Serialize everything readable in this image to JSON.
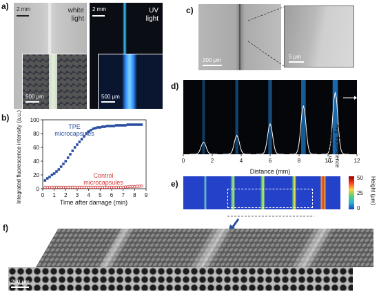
{
  "panels": {
    "a": {
      "label": "a)",
      "left": {
        "scale": "2 mm",
        "caption_line1": "white",
        "caption_line2": "light",
        "inset_scale": "500 μm"
      },
      "right": {
        "scale": "2 mm",
        "caption_line1": "UV",
        "caption_line2": "light",
        "inset_scale": "500 μm"
      }
    },
    "b": {
      "label": "b)"
    },
    "c": {
      "label": "c)",
      "scale": "200 μm",
      "inset_scale": "5 μm"
    },
    "d": {
      "label": "d)",
      "ylabel_line1": "Avg. fluorescence",
      "ylabel_line2": "intensity (a.u.)"
    },
    "e": {
      "label": "e)",
      "colorbar_title": "Height (μm)",
      "colorbar_ticks": [
        "50",
        "25",
        "0"
      ]
    },
    "f": {
      "label": "f)",
      "scale": "250 μm"
    }
  },
  "chart_data": [
    {
      "type": "scatter",
      "panel": "b",
      "xlabel": "Time after damage (min)",
      "ylabel": "Integrated fluorescence intensity (a.u.)",
      "xlim": [
        0,
        9
      ],
      "ylim": [
        0,
        100
      ],
      "xticks": [
        "0",
        "1",
        "2",
        "3",
        "4",
        "5",
        "6",
        "7",
        "8",
        "9"
      ],
      "yticks": [
        "0",
        "20",
        "40",
        "60",
        "80",
        "100"
      ],
      "series": [
        {
          "name": "TPE microcapsules",
          "label_line1": "TPE",
          "label_line2": "microcapsules",
          "color": "#2a4fa0",
          "marker": "filled-square",
          "x": [
            0.2,
            0.4,
            0.6,
            0.8,
            1.0,
            1.2,
            1.4,
            1.6,
            1.8,
            2.0,
            2.2,
            2.4,
            2.6,
            2.8,
            3.0,
            3.2,
            3.4,
            3.6,
            3.8,
            4.0,
            4.2,
            4.4,
            4.6,
            4.8,
            5.0,
            5.2,
            5.4,
            5.6,
            5.8,
            6.0,
            6.2,
            6.4,
            6.6,
            6.8,
            7.0,
            7.2,
            7.4,
            7.6,
            7.8,
            8.0,
            8.2,
            8.4,
            8.6
          ],
          "y": [
            12,
            15,
            17,
            20,
            22,
            25,
            28,
            32,
            36,
            40,
            45,
            50,
            55,
            60,
            64,
            68,
            72,
            76,
            80,
            83,
            85,
            87,
            88,
            89,
            89,
            90,
            90,
            91,
            91,
            91,
            91,
            92,
            92,
            92,
            92,
            92,
            93,
            93,
            93,
            93,
            93,
            93,
            93
          ]
        },
        {
          "name": "Control microcapsules",
          "label_line1": "Control",
          "label_line2": "microcapsules",
          "color": "#d23a3a",
          "marker": "open-circle",
          "x": [
            0.2,
            0.4,
            0.6,
            0.8,
            1.0,
            1.2,
            1.4,
            1.6,
            1.8,
            2.0,
            2.2,
            2.4,
            2.6,
            2.8,
            3.0,
            3.2,
            3.4,
            3.6,
            3.8,
            4.0,
            4.2,
            4.4,
            4.6,
            4.8,
            5.0,
            5.2,
            5.4,
            5.6,
            5.8,
            6.0,
            6.2,
            6.4,
            6.6,
            6.8,
            7.0,
            7.2,
            7.4,
            7.6,
            7.8,
            8.0,
            8.2,
            8.4,
            8.6
          ],
          "y": [
            2,
            2,
            2,
            2,
            2,
            2,
            2,
            2,
            2,
            2,
            2,
            2,
            2,
            2,
            2,
            2,
            2,
            2,
            2,
            2,
            2,
            2,
            2,
            2,
            2,
            2,
            2,
            2,
            2,
            2,
            2,
            2,
            2,
            2,
            2,
            2.5,
            2.5,
            3,
            3,
            3,
            3.5,
            3.5,
            4
          ]
        }
      ]
    },
    {
      "type": "line",
      "panel": "d",
      "xlabel": "Distance (mm)",
      "xlim": [
        0,
        12
      ],
      "xticks": [
        "0",
        "2",
        "4",
        "6",
        "8",
        "10",
        "12"
      ],
      "peaks": [
        {
          "x": 1.4,
          "height": 0.18
        },
        {
          "x": 3.7,
          "height": 0.28
        },
        {
          "x": 6.0,
          "height": 0.45
        },
        {
          "x": 8.3,
          "height": 0.72
        },
        {
          "x": 10.5,
          "height": 0.92
        }
      ]
    }
  ]
}
